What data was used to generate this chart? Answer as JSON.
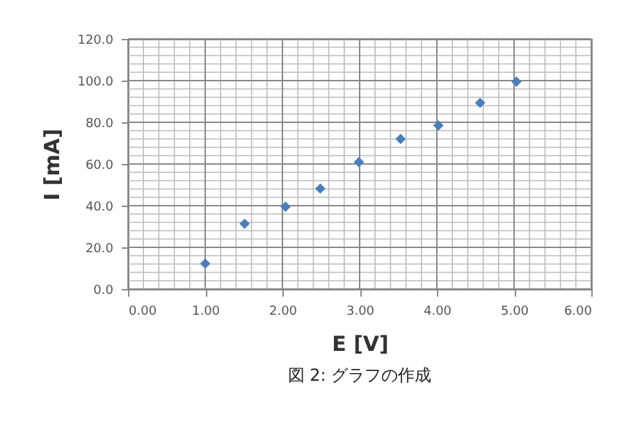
{
  "chart_data": {
    "type": "scatter",
    "xlabel": "E [V]",
    "ylabel": "I [mA]",
    "annotations": [
      "図 2: グラフの作成"
    ],
    "x": [
      1.0,
      1.51,
      2.04,
      2.49,
      2.99,
      3.53,
      4.02,
      4.56,
      5.03
    ],
    "series": [
      {
        "color": "#4a7ebb",
        "values": [
          12.2,
          31.3,
          39.5,
          48.2,
          60.9,
          72,
          78.5,
          89.3,
          99.5
        ]
      }
    ],
    "xlim": [
      0,
      6
    ],
    "xticks": [
      {
        "value": 0,
        "label": "0.00"
      },
      {
        "value": 1,
        "label": "1.00"
      },
      {
        "value": 2,
        "label": "2.00"
      },
      {
        "value": 3,
        "label": "3.00"
      },
      {
        "value": 4,
        "label": "4.00"
      },
      {
        "value": 5,
        "label": "5.00"
      },
      {
        "value": 6,
        "label": "6.00"
      }
    ],
    "ylim": [
      0,
      120
    ],
    "yticks": [
      {
        "value": 0,
        "label": "0.0"
      },
      {
        "value": 20,
        "label": "20.0"
      },
      {
        "value": 40,
        "label": "40.0"
      },
      {
        "value": 60,
        "label": "60.0"
      },
      {
        "value": 80,
        "label": "80.0"
      },
      {
        "value": 100,
        "label": "100.0"
      },
      {
        "value": 120,
        "label": "120.0"
      }
    ],
    "grid": true,
    "marker": "diamond"
  }
}
